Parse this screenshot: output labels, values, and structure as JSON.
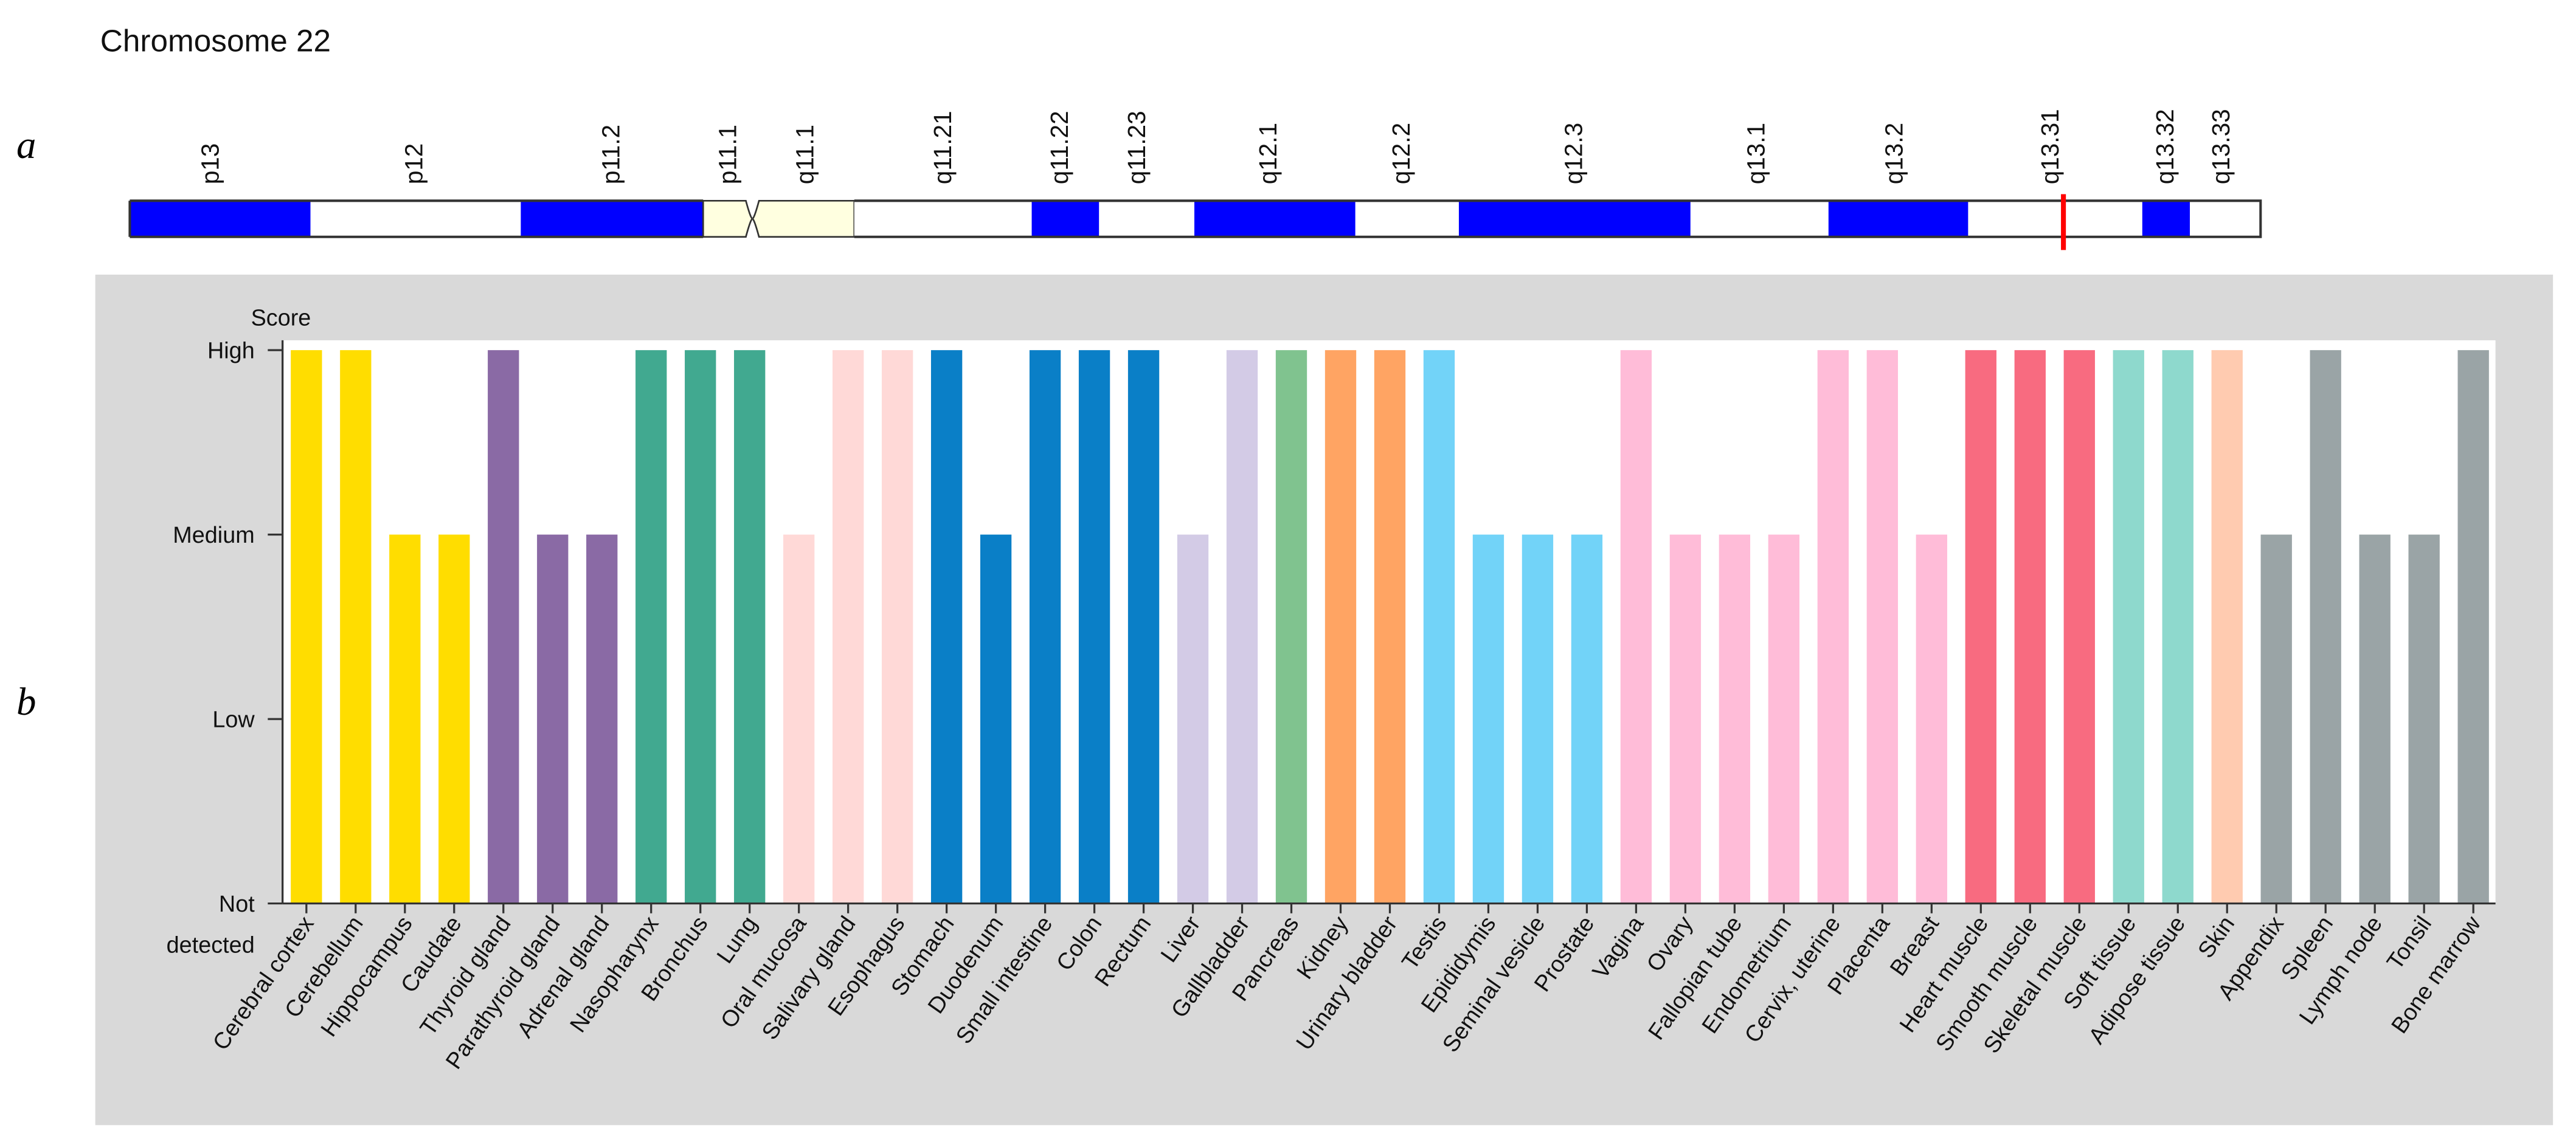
{
  "figure": {
    "panel_a_letter": "a",
    "panel_b_letter": "b"
  },
  "ideogram": {
    "title": "Chromosome 22",
    "marker_color": "#ff0000",
    "bands": [
      {
        "name": "p13",
        "stain": "dark"
      },
      {
        "name": "p12",
        "stain": "light"
      },
      {
        "name": "p11.2",
        "stain": "dark"
      },
      {
        "name": "p11.1",
        "stain": "centromere"
      },
      {
        "name": "q11.1",
        "stain": "centromere"
      },
      {
        "name": "q11.21",
        "stain": "light"
      },
      {
        "name": "q11.22",
        "stain": "dark"
      },
      {
        "name": "q11.23",
        "stain": "light"
      },
      {
        "name": "q12.1",
        "stain": "dark"
      },
      {
        "name": "q12.2",
        "stain": "light"
      },
      {
        "name": "q12.3",
        "stain": "dark"
      },
      {
        "name": "q13.1",
        "stain": "light"
      },
      {
        "name": "q13.2",
        "stain": "dark"
      },
      {
        "name": "q13.31",
        "stain": "light",
        "marked": true
      },
      {
        "name": "q13.32",
        "stain": "dark"
      },
      {
        "name": "q13.33",
        "stain": "light"
      }
    ],
    "colors": {
      "dark": "#0000ff",
      "light": "#ffffff",
      "centromere": "#ffffe0",
      "outline": "#333333"
    }
  },
  "chart_data": {
    "type": "bar",
    "ylabel": "Score",
    "y_ticks": [
      "High",
      "Medium",
      "Low",
      "Not detected"
    ],
    "y_tick_lines": [
      [
        "High"
      ],
      [
        "Medium"
      ],
      [
        "Low"
      ],
      [
        "Not",
        "detected"
      ]
    ],
    "ylim": [
      0,
      3
    ],
    "background": "#d9d9d9",
    "plot_background": "#ffffff",
    "categories": [
      "Cerebral cortex",
      "Cerebellum",
      "Hippocampus",
      "Caudate",
      "Thyroid gland",
      "Parathyroid gland",
      "Adrenal gland",
      "Nasopharynx",
      "Bronchus",
      "Lung",
      "Oral mucosa",
      "Salivary gland",
      "Esophagus",
      "Stomach",
      "Duodenum",
      "Small intestine",
      "Colon",
      "Rectum",
      "Liver",
      "Gallbladder",
      "Pancreas",
      "Kidney",
      "Urinary bladder",
      "Testis",
      "Epididymis",
      "Seminal vesicle",
      "Prostate",
      "Vagina",
      "Ovary",
      "Fallopian tube",
      "Endometrium",
      "Cervix, uterine",
      "Placenta",
      "Breast",
      "Heart muscle",
      "Smooth muscle",
      "Skeletal muscle",
      "Soft tissue",
      "Adipose tissue",
      "Skin",
      "Appendix",
      "Spleen",
      "Lymph node",
      "Tonsil",
      "Bone marrow"
    ],
    "values": [
      3,
      3,
      2,
      2,
      3,
      2,
      2,
      3,
      3,
      3,
      2,
      3,
      3,
      3,
      2,
      3,
      3,
      3,
      2,
      3,
      3,
      3,
      3,
      3,
      2,
      2,
      2,
      3,
      2,
      2,
      2,
      3,
      3,
      2,
      3,
      3,
      3,
      3,
      3,
      3,
      2,
      3,
      2,
      2,
      3
    ],
    "colors": [
      "#ffdd00",
      "#ffdd00",
      "#ffdd00",
      "#ffdd00",
      "#8a6aa5",
      "#8a6aa5",
      "#8a6aa5",
      "#41a990",
      "#41a990",
      "#41a990",
      "#ffd9d7",
      "#ffd9d7",
      "#ffd9d7",
      "#0a7fc7",
      "#0a7fc7",
      "#0a7fc7",
      "#0a7fc7",
      "#0a7fc7",
      "#d3cbe6",
      "#d3cbe6",
      "#80c38f",
      "#ffa463",
      "#ffa463",
      "#72d3f8",
      "#72d3f8",
      "#72d3f8",
      "#72d3f8",
      "#ffbcd8",
      "#ffbcd8",
      "#ffbcd8",
      "#ffbcd8",
      "#ffbcd8",
      "#ffbcd8",
      "#ffbcd8",
      "#f86b80",
      "#f86b80",
      "#f86b80",
      "#8ed9cd",
      "#8ed9cd",
      "#ffcbb0",
      "#9aa4a6",
      "#9aa4a6",
      "#9aa4a6",
      "#9aa4a6",
      "#9aa4a6"
    ]
  }
}
